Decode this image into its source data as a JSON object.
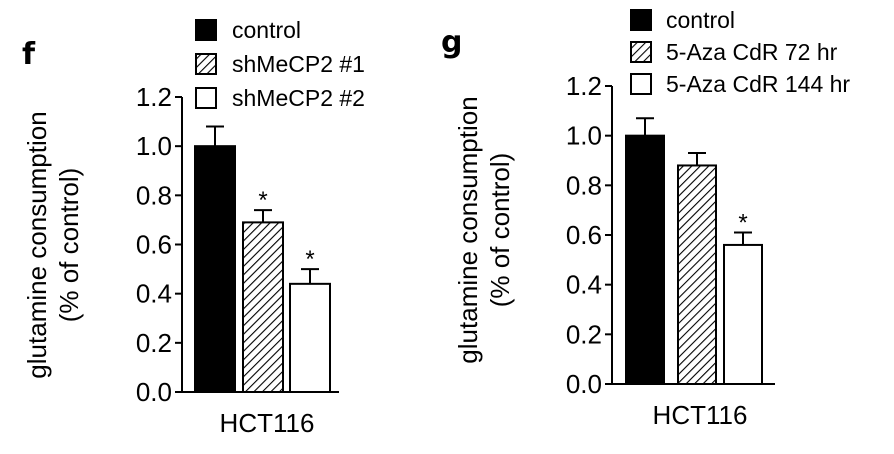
{
  "chart_data": [
    {
      "type": "bar",
      "panel": "f",
      "categories": [
        "HCT116"
      ],
      "series": [
        {
          "name": "control",
          "values": [
            1.0
          ],
          "error": [
            0.08
          ],
          "fill": "solid",
          "significant": false
        },
        {
          "name": "shMeCP2 #1",
          "values": [
            0.69
          ],
          "error": [
            0.05
          ],
          "fill": "hatched",
          "significant": true
        },
        {
          "name": "shMeCP2 #2",
          "values": [
            0.44
          ],
          "error": [
            0.06
          ],
          "fill": "open",
          "significant": true
        }
      ],
      "ylabel_line1": "glutamine consumption",
      "ylabel_line2": "(% of control)",
      "xlabel": "",
      "ylim": [
        0,
        1.2
      ],
      "yticks": [
        "0.0",
        "0.2",
        "0.4",
        "0.6",
        "0.8",
        "1.0",
        "1.2"
      ],
      "significance_marker": "*",
      "legend_position": "top",
      "grid": false
    },
    {
      "type": "bar",
      "panel": "g",
      "categories": [
        "HCT116"
      ],
      "series": [
        {
          "name": "control",
          "values": [
            1.0
          ],
          "error": [
            0.07
          ],
          "fill": "solid",
          "significant": false
        },
        {
          "name": "5-Aza CdR 72 hr",
          "values": [
            0.88
          ],
          "error": [
            0.05
          ],
          "fill": "hatched",
          "significant": false
        },
        {
          "name": "5-Aza CdR 144 hr",
          "values": [
            0.56
          ],
          "error": [
            0.05
          ],
          "fill": "open",
          "significant": true
        }
      ],
      "ylabel_line1": "glutamine consumption",
      "ylabel_line2": "(% of control)",
      "xlabel": "",
      "ylim": [
        0,
        1.2
      ],
      "yticks": [
        "0.0",
        "0.2",
        "0.4",
        "0.6",
        "0.8",
        "1.0",
        "1.2"
      ],
      "significance_marker": "*",
      "legend_position": "top",
      "grid": false
    }
  ],
  "colors": {
    "solid": "#000000",
    "open": "#ffffff",
    "stroke": "#000000"
  }
}
